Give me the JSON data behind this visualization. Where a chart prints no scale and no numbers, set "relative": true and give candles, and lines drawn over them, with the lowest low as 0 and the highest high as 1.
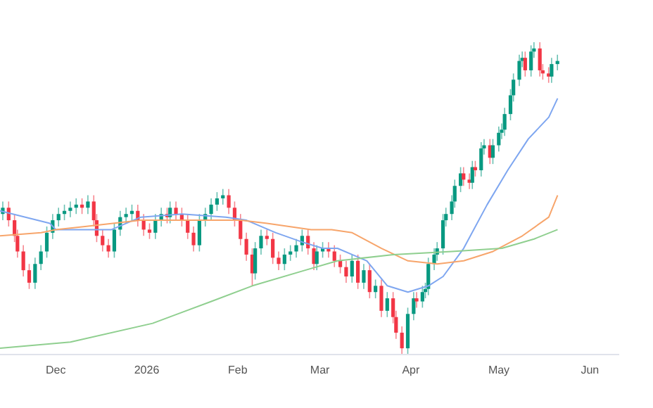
{
  "chart_data": {
    "type": "candlestick",
    "relative": true,
    "xlim": [
      "2025-11-12",
      "2026-06-11"
    ],
    "xticks": [
      {
        "value": "2025-12-01",
        "label": "Dec"
      },
      {
        "value": "2026-01-01",
        "label": "2026"
      },
      {
        "value": "2026-02-01",
        "label": "Feb"
      },
      {
        "value": "2026-03-01",
        "label": "Mar"
      },
      {
        "value": "2026-04-01",
        "label": "Apr"
      },
      {
        "value": "2026-05-01",
        "label": "May"
      },
      {
        "value": "2026-06-01",
        "label": "Jun"
      }
    ],
    "x": [
      "2025-11-13",
      "2025-11-15",
      "2025-11-17",
      "2025-11-18",
      "2025-11-20",
      "2025-11-22",
      "2025-11-24",
      "2025-11-26",
      "2025-11-28",
      "2025-11-30",
      "2025-12-02",
      "2025-12-04",
      "2025-12-06",
      "2025-12-08",
      "2025-12-10",
      "2025-12-12",
      "2025-12-14",
      "2025-12-15",
      "2025-12-17",
      "2025-12-19",
      "2025-12-21",
      "2025-12-23",
      "2025-12-25",
      "2025-12-27",
      "2025-12-29",
      "2025-12-31",
      "2026-01-02",
      "2026-01-04",
      "2026-01-06",
      "2026-01-08",
      "2026-01-09",
      "2026-01-11",
      "2026-01-13",
      "2026-01-15",
      "2026-01-17",
      "2026-01-19",
      "2026-01-21",
      "2026-01-23",
      "2026-01-25",
      "2026-01-27",
      "2026-01-29",
      "2026-01-31",
      "2026-02-02",
      "2026-02-04",
      "2026-02-06",
      "2026-02-07",
      "2026-02-09",
      "2026-02-11",
      "2026-02-13",
      "2026-02-15",
      "2026-02-17",
      "2026-02-19",
      "2026-02-21",
      "2026-02-23",
      "2026-02-25",
      "2026-02-27",
      "2026-02-28",
      "2026-03-02",
      "2026-03-04",
      "2026-03-06",
      "2026-03-08",
      "2026-03-10",
      "2026-03-12",
      "2026-03-14",
      "2026-03-16",
      "2026-03-18",
      "2026-03-20",
      "2026-03-22",
      "2026-03-24",
      "2026-03-26",
      "2026-03-27",
      "2026-03-29",
      "2026-03-31",
      "2026-04-02",
      "2026-04-03",
      "2026-04-05",
      "2026-04-06",
      "2026-04-07",
      "2026-04-09",
      "2026-04-10",
      "2026-04-12",
      "2026-04-13",
      "2026-04-15",
      "2026-04-16",
      "2026-04-18",
      "2026-04-19",
      "2026-04-21",
      "2026-04-22",
      "2026-04-23",
      "2026-04-25",
      "2026-04-26",
      "2026-04-28",
      "2026-04-29",
      "2026-05-01",
      "2026-05-02",
      "2026-05-03",
      "2026-05-05",
      "2026-05-06",
      "2026-05-08",
      "2026-05-09",
      "2026-05-10",
      "2026-05-12",
      "2026-05-13",
      "2026-05-15",
      "2026-05-16",
      "2026-05-18",
      "2026-05-19",
      "2026-05-21"
    ],
    "ohlc": [
      [
        0.45,
        0.49,
        0.43,
        0.47
      ],
      [
        0.47,
        0.49,
        0.41,
        0.43
      ],
      [
        0.43,
        0.45,
        0.36,
        0.38
      ],
      [
        0.38,
        0.4,
        0.31,
        0.33
      ],
      [
        0.33,
        0.35,
        0.25,
        0.27
      ],
      [
        0.27,
        0.29,
        0.21,
        0.23
      ],
      [
        0.23,
        0.31,
        0.21,
        0.29
      ],
      [
        0.29,
        0.35,
        0.27,
        0.33
      ],
      [
        0.33,
        0.41,
        0.31,
        0.39
      ],
      [
        0.39,
        0.45,
        0.37,
        0.43
      ],
      [
        0.43,
        0.47,
        0.41,
        0.45
      ],
      [
        0.45,
        0.48,
        0.43,
        0.46
      ],
      [
        0.46,
        0.49,
        0.44,
        0.47
      ],
      [
        0.47,
        0.5,
        0.45,
        0.48
      ],
      [
        0.48,
        0.5,
        0.45,
        0.47
      ],
      [
        0.47,
        0.51,
        0.45,
        0.49
      ],
      [
        0.49,
        0.51,
        0.41,
        0.43
      ],
      [
        0.43,
        0.45,
        0.36,
        0.38
      ],
      [
        0.38,
        0.4,
        0.33,
        0.35
      ],
      [
        0.35,
        0.37,
        0.31,
        0.33
      ],
      [
        0.33,
        0.42,
        0.31,
        0.4
      ],
      [
        0.4,
        0.46,
        0.38,
        0.44
      ],
      [
        0.44,
        0.47,
        0.42,
        0.45
      ],
      [
        0.45,
        0.48,
        0.43,
        0.46
      ],
      [
        0.46,
        0.48,
        0.41,
        0.43
      ],
      [
        0.43,
        0.45,
        0.38,
        0.4
      ],
      [
        0.4,
        0.42,
        0.37,
        0.39
      ],
      [
        0.39,
        0.45,
        0.37,
        0.43
      ],
      [
        0.43,
        0.47,
        0.41,
        0.45
      ],
      [
        0.45,
        0.47,
        0.42,
        0.44
      ],
      [
        0.44,
        0.49,
        0.42,
        0.47
      ],
      [
        0.47,
        0.49,
        0.43,
        0.45
      ],
      [
        0.45,
        0.47,
        0.41,
        0.43
      ],
      [
        0.43,
        0.45,
        0.37,
        0.39
      ],
      [
        0.39,
        0.41,
        0.33,
        0.35
      ],
      [
        0.35,
        0.45,
        0.33,
        0.43
      ],
      [
        0.43,
        0.47,
        0.41,
        0.45
      ],
      [
        0.45,
        0.5,
        0.43,
        0.48
      ],
      [
        0.48,
        0.52,
        0.46,
        0.5
      ],
      [
        0.5,
        0.53,
        0.48,
        0.51
      ],
      [
        0.51,
        0.53,
        0.45,
        0.47
      ],
      [
        0.47,
        0.49,
        0.41,
        0.43
      ],
      [
        0.43,
        0.45,
        0.35,
        0.37
      ],
      [
        0.37,
        0.39,
        0.3,
        0.32
      ],
      [
        0.32,
        0.34,
        0.22,
        0.26
      ],
      [
        0.26,
        0.36,
        0.24,
        0.34
      ],
      [
        0.34,
        0.4,
        0.32,
        0.38
      ],
      [
        0.38,
        0.4,
        0.35,
        0.37
      ],
      [
        0.37,
        0.39,
        0.29,
        0.31
      ],
      [
        0.31,
        0.33,
        0.27,
        0.29
      ],
      [
        0.29,
        0.34,
        0.27,
        0.32
      ],
      [
        0.32,
        0.35,
        0.3,
        0.33
      ],
      [
        0.33,
        0.37,
        0.31,
        0.35
      ],
      [
        0.35,
        0.4,
        0.33,
        0.38
      ],
      [
        0.38,
        0.4,
        0.32,
        0.34
      ],
      [
        0.34,
        0.36,
        0.27,
        0.29
      ],
      [
        0.29,
        0.35,
        0.27,
        0.33
      ],
      [
        0.33,
        0.36,
        0.31,
        0.34
      ],
      [
        0.34,
        0.36,
        0.31,
        0.33
      ],
      [
        0.33,
        0.35,
        0.28,
        0.3
      ],
      [
        0.3,
        0.32,
        0.26,
        0.28
      ],
      [
        0.28,
        0.3,
        0.23,
        0.25
      ],
      [
        0.25,
        0.32,
        0.23,
        0.3
      ],
      [
        0.3,
        0.32,
        0.21,
        0.23
      ],
      [
        0.23,
        0.29,
        0.21,
        0.27
      ],
      [
        0.27,
        0.29,
        0.18,
        0.2
      ],
      [
        0.2,
        0.24,
        0.18,
        0.22
      ],
      [
        0.22,
        0.24,
        0.12,
        0.14
      ],
      [
        0.14,
        0.2,
        0.12,
        0.18
      ],
      [
        0.18,
        0.2,
        0.1,
        0.12
      ],
      [
        0.12,
        0.14,
        0.05,
        0.07
      ],
      [
        0.07,
        0.09,
        0,
        0.02
      ],
      [
        0.02,
        0.15,
        0,
        0.13
      ],
      [
        0.13,
        0.2,
        0.11,
        0.18
      ],
      [
        0.18,
        0.2,
        0.15,
        0.17
      ],
      [
        0.17,
        0.22,
        0.15,
        0.2
      ],
      [
        0.2,
        0.23,
        0.18,
        0.21
      ],
      [
        0.21,
        0.31,
        0.19,
        0.29
      ],
      [
        0.29,
        0.34,
        0.27,
        0.32
      ],
      [
        0.32,
        0.36,
        0.3,
        0.34
      ],
      [
        0.34,
        0.45,
        0.32,
        0.43
      ],
      [
        0.43,
        0.47,
        0.41,
        0.45
      ],
      [
        0.45,
        0.51,
        0.43,
        0.49
      ],
      [
        0.49,
        0.56,
        0.47,
        0.54
      ],
      [
        0.54,
        0.6,
        0.52,
        0.58
      ],
      [
        0.58,
        0.6,
        0.54,
        0.56
      ],
      [
        0.56,
        0.58,
        0.53,
        0.55
      ],
      [
        0.55,
        0.62,
        0.53,
        0.6
      ],
      [
        0.6,
        0.62,
        0.57,
        0.59
      ],
      [
        0.59,
        0.68,
        0.57,
        0.66
      ],
      [
        0.66,
        0.69,
        0.64,
        0.67
      ],
      [
        0.67,
        0.69,
        0.61,
        0.63
      ],
      [
        0.63,
        0.69,
        0.61,
        0.67
      ],
      [
        0.67,
        0.73,
        0.65,
        0.71
      ],
      [
        0.71,
        0.74,
        0.69,
        0.72
      ],
      [
        0.72,
        0.79,
        0.7,
        0.77
      ],
      [
        0.77,
        0.85,
        0.75,
        0.83
      ],
      [
        0.83,
        0.9,
        0.81,
        0.88
      ],
      [
        0.88,
        0.96,
        0.86,
        0.94
      ],
      [
        0.94,
        0.97,
        0.92,
        0.95
      ],
      [
        0.95,
        0.97,
        0.89,
        0.91
      ],
      [
        0.91,
        0.99,
        0.89,
        0.97
      ],
      [
        0.97,
        1,
        0.95,
        0.98
      ],
      [
        0.98,
        1,
        0.89,
        0.91
      ],
      [
        0.91,
        0.93,
        0.88,
        0.9
      ],
      [
        0.9,
        0.92,
        0.87,
        0.89
      ],
      [
        0.89,
        0.95,
        0.87,
        0.93
      ],
      [
        0.93,
        0.96,
        0.91,
        0.94
      ]
    ],
    "series": [
      {
        "type": "line",
        "color": "#7ea6f0",
        "x": [
          "2025-11-12",
          "2025-11-29",
          "2025-12-01",
          "2025-12-11",
          "2025-12-20",
          "2025-12-30",
          "2026-01-13",
          "2026-01-28",
          "2026-02-04",
          "2026-02-14",
          "2026-02-23",
          "2026-03-02",
          "2026-03-07",
          "2026-03-17",
          "2026-03-24",
          "2026-03-31",
          "2026-04-07",
          "2026-04-12",
          "2026-04-19",
          "2026-04-27",
          "2026-05-04",
          "2026-05-11",
          "2026-05-18",
          "2026-05-21"
        ],
        "values": [
          0.46,
          0.42,
          0.4,
          0.4,
          0.4,
          0.44,
          0.45,
          0.44,
          0.43,
          0.39,
          0.36,
          0.34,
          0.34,
          0.3,
          0.22,
          0.2,
          0.22,
          0.25,
          0.34,
          0.48,
          0.59,
          0.69,
          0.76,
          0.82
        ]
      },
      {
        "type": "line",
        "color": "#f7a56b",
        "x": [
          "2025-11-12",
          "2025-11-26",
          "2025-12-01",
          "2025-12-11",
          "2025-12-30",
          "2026-01-18",
          "2026-02-02",
          "2026-02-11",
          "2026-02-26",
          "2026-03-05",
          "2026-03-12",
          "2026-03-22",
          "2026-03-31",
          "2026-04-10",
          "2026-04-19",
          "2026-04-29",
          "2026-05-09",
          "2026-05-18",
          "2026-05-21"
        ],
        "values": [
          0.38,
          0.39,
          0.4,
          0.41,
          0.43,
          0.43,
          0.43,
          0.42,
          0.4,
          0.4,
          0.39,
          0.34,
          0.3,
          0.29,
          0.3,
          0.33,
          0.38,
          0.44,
          0.51
        ]
      },
      {
        "type": "line",
        "color": "#8fcf8f",
        "x": [
          "2025-11-12",
          "2025-12-06",
          "2026-01-03",
          "2026-01-23",
          "2026-02-06",
          "2026-02-24",
          "2026-03-07",
          "2026-03-26",
          "2026-04-15",
          "2026-05-02",
          "2026-05-13",
          "2026-05-21"
        ],
        "values": [
          0.02,
          0.04,
          0.1,
          0.17,
          0.22,
          0.27,
          0.3,
          0.32,
          0.33,
          0.34,
          0.37,
          0.4
        ]
      }
    ]
  }
}
